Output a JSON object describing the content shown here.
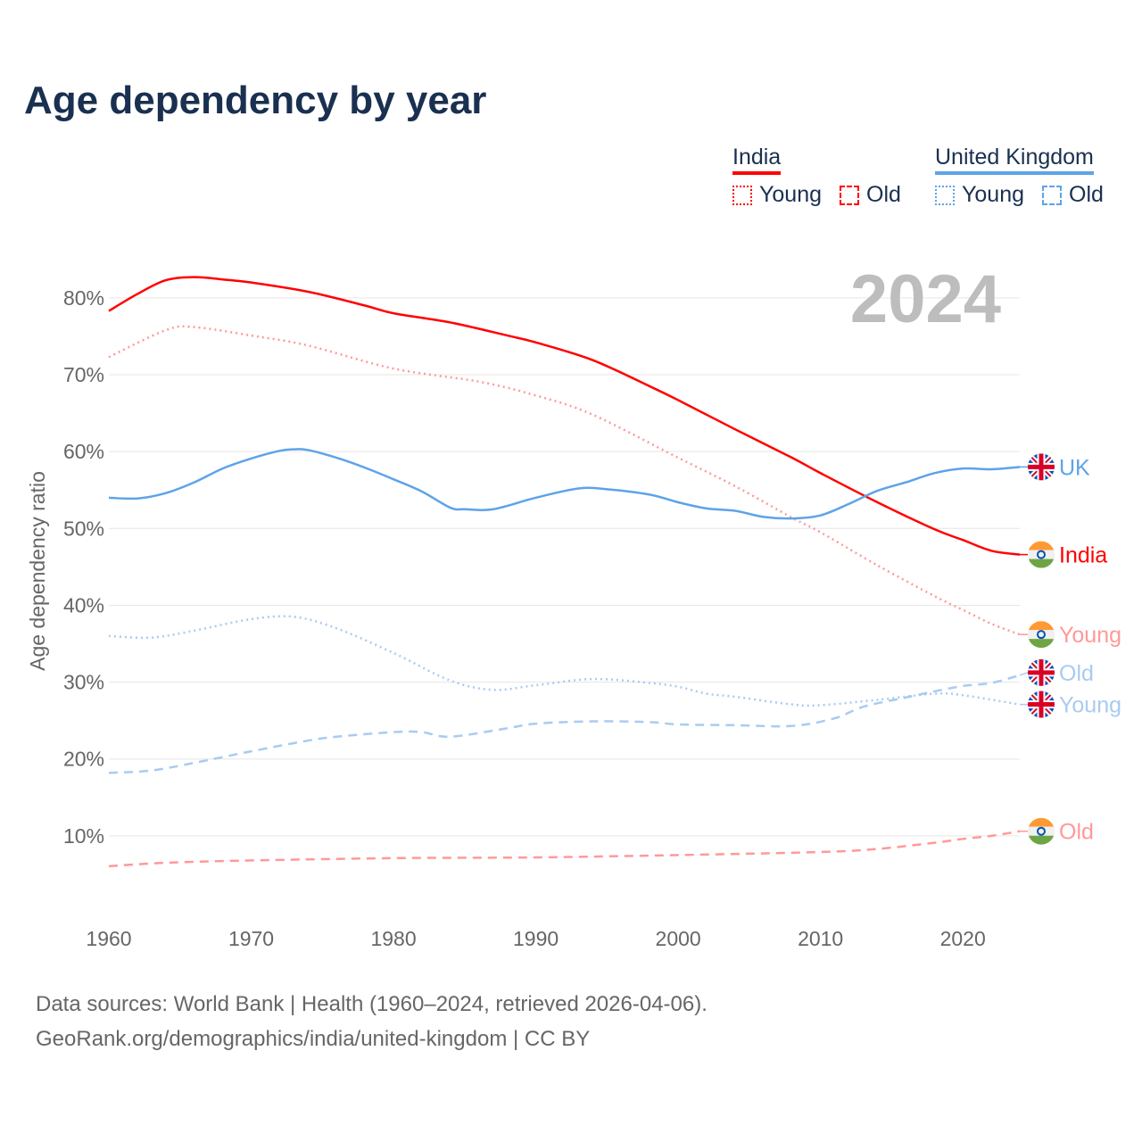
{
  "title": "Age dependency by year",
  "legend": {
    "india": {
      "label": "India",
      "young": "Young",
      "old": "Old"
    },
    "uk": {
      "label": "United Kingdom",
      "young": "Young",
      "old": "Old"
    }
  },
  "year_label": "2024",
  "sources": [
    "Data sources: World Bank | Health (1960–2024, retrieved 2026-04-06).",
    "GeoRank.org/demographics/india/united-kingdom | CC BY"
  ],
  "colors": {
    "india": "#ff0000",
    "india_light": "#ff9999",
    "uk": "#5ea3e8",
    "uk_light": "#a9cbf2",
    "grid": "#e6e6e6",
    "axis_text": "#666666"
  },
  "chart_data": {
    "type": "line",
    "title": "Age dependency by year",
    "xlabel": "",
    "ylabel": "Age dependency ratio",
    "xlim": [
      1960,
      2024
    ],
    "ylim": [
      0,
      85
    ],
    "xticks": [
      1960,
      1970,
      1980,
      1990,
      2000,
      2010,
      2020
    ],
    "yticks": [
      10,
      20,
      30,
      40,
      50,
      60,
      70,
      80
    ],
    "ytick_labels": [
      "10%",
      "20%",
      "30%",
      "40%",
      "50%",
      "60%",
      "70%",
      "80%"
    ],
    "series": [
      {
        "name": "India",
        "end_label": "India",
        "country": "india",
        "style": "solid",
        "color": "#ff0000",
        "x": [
          1960,
          1962,
          1964,
          1966,
          1968,
          1970,
          1974,
          1978,
          1980,
          1984,
          1988,
          1990,
          1994,
          1998,
          2000,
          2004,
          2008,
          2010,
          2014,
          2018,
          2020,
          2022,
          2024
        ],
        "y": [
          78.3,
          80.5,
          82.3,
          82.7,
          82.4,
          82.0,
          80.8,
          79.0,
          78.0,
          76.8,
          75.1,
          74.2,
          71.9,
          68.5,
          66.7,
          62.9,
          59.2,
          57.2,
          53.4,
          49.9,
          48.5,
          47.1,
          46.6
        ]
      },
      {
        "name": "India Young",
        "end_label": "Young",
        "country": "india",
        "style": "dotted",
        "color": "#ff9999",
        "x": [
          1960,
          1964,
          1966,
          1970,
          1974,
          1980,
          1986,
          1990,
          1994,
          2000,
          2004,
          2008,
          2010,
          2014,
          2018,
          2020,
          2022,
          2024
        ],
        "y": [
          72.3,
          75.8,
          76.2,
          75.1,
          73.8,
          70.8,
          69.1,
          67.3,
          64.8,
          59.2,
          55.5,
          51.4,
          49.5,
          45.2,
          41.2,
          39.4,
          37.6,
          36.2
        ]
      },
      {
        "name": "India Old",
        "end_label": "Old",
        "country": "india",
        "style": "dashed",
        "color": "#ff9999",
        "x": [
          1960,
          1964,
          1970,
          1980,
          1990,
          2000,
          2010,
          2014,
          2018,
          2020,
          2022,
          2024
        ],
        "y": [
          6.05,
          6.5,
          6.8,
          7.1,
          7.2,
          7.5,
          7.9,
          8.3,
          9.1,
          9.6,
          10.0,
          10.6
        ]
      },
      {
        "name": "United Kingdom",
        "end_label": "UK",
        "country": "uk",
        "style": "solid",
        "color": "#5ea3e8",
        "x": [
          1960,
          1962,
          1964,
          1966,
          1968,
          1970,
          1972,
          1973,
          1974,
          1976,
          1978,
          1980,
          1982,
          1984,
          1985,
          1987,
          1990,
          1993,
          1995,
          1998,
          2000,
          2002,
          2004,
          2006,
          2008,
          2010,
          2012,
          2014,
          2016,
          2018,
          2020,
          2022,
          2024
        ],
        "y": [
          54.0,
          53.9,
          54.6,
          56.0,
          57.8,
          59.1,
          60.1,
          60.3,
          60.2,
          59.2,
          57.9,
          56.4,
          54.8,
          52.7,
          52.5,
          52.5,
          54.0,
          55.2,
          55.1,
          54.4,
          53.4,
          52.6,
          52.3,
          51.5,
          51.3,
          51.7,
          53.2,
          54.9,
          56.0,
          57.2,
          57.8,
          57.7,
          58.0
        ]
      },
      {
        "name": "United Kingdom Young",
        "end_label": "Young",
        "country": "uk",
        "style": "dotted",
        "color": "#a9cbf2",
        "x": [
          1960,
          1963,
          1966,
          1970,
          1973,
          1976,
          1980,
          1984,
          1987,
          1990,
          1994,
          1998,
          2000,
          2002,
          2004,
          2008,
          2010,
          2014,
          2018,
          2020,
          2024
        ],
        "y": [
          36.0,
          35.8,
          36.7,
          38.2,
          38.5,
          37.0,
          33.8,
          30.2,
          29.0,
          29.6,
          30.4,
          29.9,
          29.4,
          28.5,
          28.1,
          27.1,
          27.0,
          27.7,
          28.5,
          28.3,
          27.1
        ]
      },
      {
        "name": "United Kingdom Old",
        "end_label": "Old",
        "country": "uk",
        "style": "dashed",
        "color": "#a9cbf2",
        "x": [
          1960,
          1963,
          1966,
          1970,
          1974,
          1976,
          1980,
          1982,
          1984,
          1988,
          1990,
          1994,
          1998,
          2000,
          2004,
          2008,
          2011,
          2013,
          2016,
          2018,
          2020,
          2022,
          2024
        ],
        "y": [
          18.2,
          18.5,
          19.5,
          21.0,
          22.4,
          22.9,
          23.5,
          23.5,
          22.9,
          24.0,
          24.6,
          24.9,
          24.8,
          24.5,
          24.4,
          24.3,
          25.3,
          26.8,
          28.0,
          28.8,
          29.5,
          29.9,
          30.9
        ]
      }
    ]
  }
}
